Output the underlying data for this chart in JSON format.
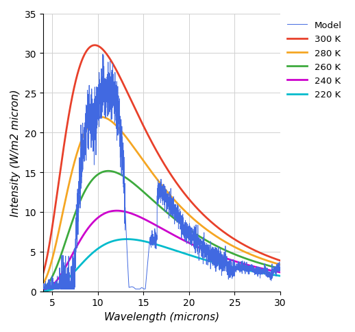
{
  "xlabel": "Wavelength (microns)",
  "ylabel": "Intensity (W/m2 micron)",
  "xlim": [
    4,
    30
  ],
  "ylim": [
    0,
    35
  ],
  "xticks": [
    5,
    10,
    15,
    20,
    25,
    30
  ],
  "yticks": [
    0,
    5,
    10,
    15,
    20,
    25,
    30,
    35
  ],
  "planck_temps": [
    300,
    280,
    260,
    240,
    220
  ],
  "planck_colors": [
    "#e8402a",
    "#f5a623",
    "#3daa3d",
    "#cc00cc",
    "#00bbcc"
  ],
  "planck_labels": [
    "300 K",
    "280 K",
    "260 K",
    "240 K",
    "220 K"
  ],
  "model_color": "#4169e1",
  "model_label": "Model",
  "figsize": [
    5.18,
    4.85
  ],
  "dpi": 100,
  "legend_fontsize": 9.5,
  "axis_label_fontsize": 11,
  "tick_fontsize": 10,
  "grid_color": "#d0d0d0",
  "grid_linewidth": 0.7,
  "planck_linewidth": 2.0,
  "model_linewidth": 0.7,
  "noise_seed": 42,
  "planck_scale": 31.0
}
